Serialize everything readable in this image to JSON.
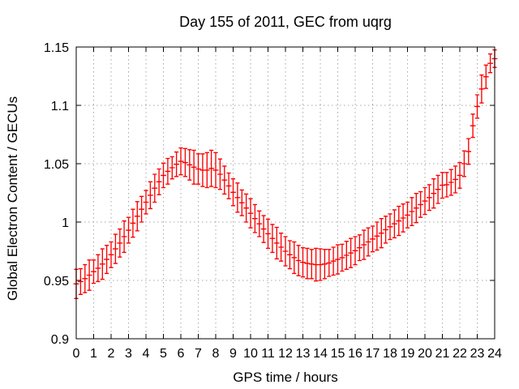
{
  "chart_data": {
    "type": "line",
    "subtype": "yerrorbars",
    "title": "Day 155 of 2011, GEC from uqrg",
    "xlabel": "GPS time / hours",
    "ylabel": "Global Electron Content / GECUs",
    "xlim": [
      0,
      24
    ],
    "ylim": [
      0.9,
      1.15
    ],
    "grid": "dotted",
    "legend": "none",
    "series_color": "#fa0000",
    "grid_color": "#a8a8a8",
    "frame_color": "#000000",
    "x_tick_values": [
      0,
      1,
      2,
      3,
      4,
      5,
      6,
      7,
      8,
      9,
      10,
      11,
      12,
      13,
      14,
      15,
      16,
      17,
      18,
      19,
      20,
      21,
      22,
      23,
      24
    ],
    "x_tick_labels": [
      "0",
      "1",
      "2",
      "3",
      "4",
      "5",
      "6",
      "7",
      "8",
      "9",
      "10",
      "11",
      "12",
      "13",
      "14",
      "15",
      "16",
      "17",
      "18",
      "19",
      "20",
      "21",
      "22",
      "23",
      "24"
    ],
    "y_tick_values": [
      0.9,
      0.95,
      1.0,
      1.05,
      1.1,
      1.15
    ],
    "y_tick_labels": [
      "0.9",
      "0.95",
      "1",
      "1.05",
      "1.1",
      "1.15"
    ],
    "x": [
      0,
      0.25,
      0.5,
      0.75,
      1,
      1.25,
      1.5,
      1.75,
      2,
      2.25,
      2.5,
      2.75,
      3,
      3.25,
      3.5,
      3.75,
      4,
      4.25,
      4.5,
      4.75,
      5,
      5.25,
      5.5,
      5.75,
      6,
      6.25,
      6.5,
      6.75,
      7,
      7.25,
      7.5,
      7.75,
      8,
      8.25,
      8.5,
      8.75,
      9,
      9.25,
      9.5,
      9.75,
      10,
      10.25,
      10.5,
      10.75,
      11,
      11.25,
      11.5,
      11.75,
      12,
      12.25,
      12.5,
      12.75,
      13,
      13.25,
      13.5,
      13.75,
      14,
      14.25,
      14.5,
      14.75,
      15,
      15.25,
      15.5,
      15.75,
      16,
      16.25,
      16.5,
      16.75,
      17,
      17.25,
      17.5,
      17.75,
      18,
      18.25,
      18.5,
      18.75,
      19,
      19.25,
      19.5,
      19.75,
      20,
      20.25,
      20.5,
      20.75,
      21,
      21.25,
      21.5,
      21.75,
      22,
      22.25,
      22.5,
      22.75,
      23,
      23.25,
      23.5,
      23.75,
      24
    ],
    "y": [
      0.947,
      0.949,
      0.9515,
      0.9545,
      0.9575,
      0.9605,
      0.964,
      0.968,
      0.972,
      0.977,
      0.982,
      0.9875,
      0.993,
      0.999,
      1.005,
      1.011,
      1.017,
      1.023,
      1.029,
      1.0345,
      1.04,
      1.0435,
      1.0465,
      1.0495,
      1.052,
      1.051,
      1.049,
      1.047,
      1.0455,
      1.0445,
      1.0445,
      1.046,
      1.0445,
      1.041,
      1.036,
      1.031,
      1.0255,
      1.021,
      1.0165,
      1.012,
      1.0075,
      1.003,
      0.9985,
      0.994,
      0.99,
      0.986,
      0.982,
      0.9785,
      0.975,
      0.972,
      0.9695,
      0.967,
      0.9655,
      0.9645,
      0.964,
      0.9635,
      0.9635,
      0.964,
      0.965,
      0.9665,
      0.968,
      0.9695,
      0.9715,
      0.9735,
      0.9755,
      0.978,
      0.9805,
      0.983,
      0.9855,
      0.988,
      0.9905,
      0.9935,
      0.996,
      0.9985,
      1.001,
      1.0035,
      1.006,
      1.009,
      1.012,
      1.015,
      1.018,
      1.021,
      1.0245,
      1.028,
      1.0315,
      1.032,
      1.034,
      1.0365,
      1.04,
      1.05,
      1.0605,
      1.0825,
      1.099,
      1.114,
      1.1245,
      1.136,
      1.14
    ],
    "yerr": [
      0.0125,
      0.011,
      0.012,
      0.013,
      0.01,
      0.0115,
      0.013,
      0.012,
      0.011,
      0.0125,
      0.012,
      0.0135,
      0.011,
      0.012,
      0.0125,
      0.011,
      0.01,
      0.0115,
      0.012,
      0.011,
      0.0105,
      0.011,
      0.0095,
      0.0105,
      0.0115,
      0.012,
      0.013,
      0.0145,
      0.013,
      0.014,
      0.015,
      0.0155,
      0.015,
      0.013,
      0.012,
      0.011,
      0.0115,
      0.0125,
      0.011,
      0.012,
      0.0125,
      0.012,
      0.011,
      0.0115,
      0.0125,
      0.012,
      0.0135,
      0.012,
      0.0125,
      0.012,
      0.0135,
      0.013,
      0.0125,
      0.013,
      0.0125,
      0.014,
      0.0135,
      0.0125,
      0.0115,
      0.012,
      0.0125,
      0.0115,
      0.012,
      0.0125,
      0.012,
      0.011,
      0.0125,
      0.012,
      0.011,
      0.012,
      0.0125,
      0.0115,
      0.011,
      0.012,
      0.0125,
      0.012,
      0.011,
      0.012,
      0.0125,
      0.011,
      0.0115,
      0.011,
      0.0125,
      0.012,
      0.011,
      0.0105,
      0.011,
      0.0115,
      0.011,
      0.011,
      0.011,
      0.01,
      0.01,
      0.012,
      0.01,
      0.008,
      0.0075
    ]
  }
}
